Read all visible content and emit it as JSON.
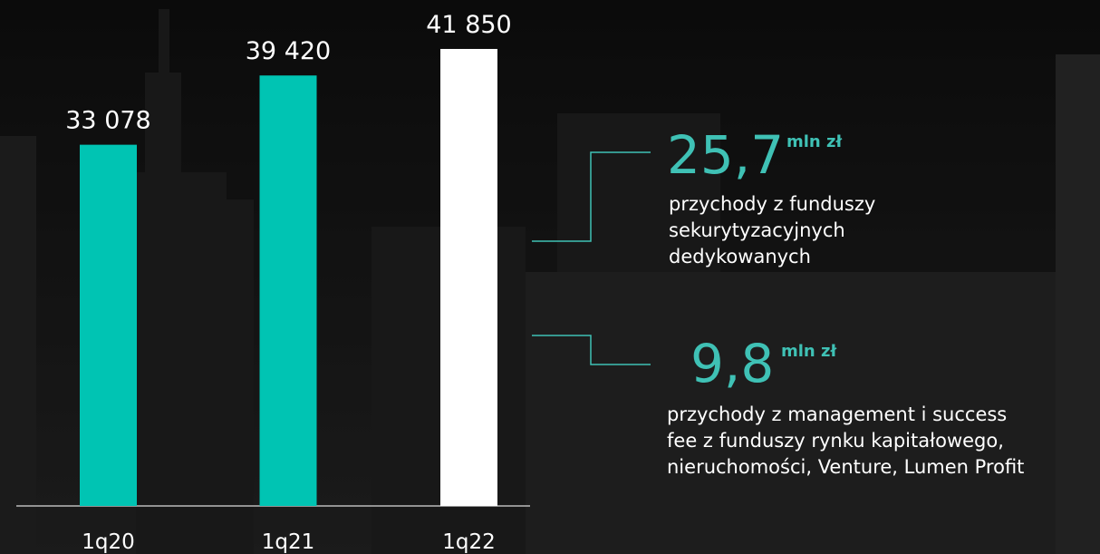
{
  "chart_data": {
    "type": "bar",
    "categories": [
      "1q20",
      "1q21",
      "1q22"
    ],
    "values": [
      33078,
      39420,
      41850
    ],
    "value_labels": [
      "33 078",
      "39 420",
      "41 850"
    ],
    "colors": [
      "#00c4b3",
      "#00c4b3",
      "#ffffff"
    ],
    "ylim": [
      0,
      46000
    ],
    "annotations": [
      {
        "value": "25,7",
        "unit": "mln zł",
        "lines": [
          "przychody z funduszy",
          "sekurytyzacyjnych",
          "dedykowanych"
        ]
      },
      {
        "value": "9,8",
        "unit": "mln zł",
        "lines": [
          "przychody z management i success",
          "fee z funduszy rynku kapitałowego,",
          "nieruchomości, Venture, Lumen Profit"
        ]
      }
    ]
  }
}
